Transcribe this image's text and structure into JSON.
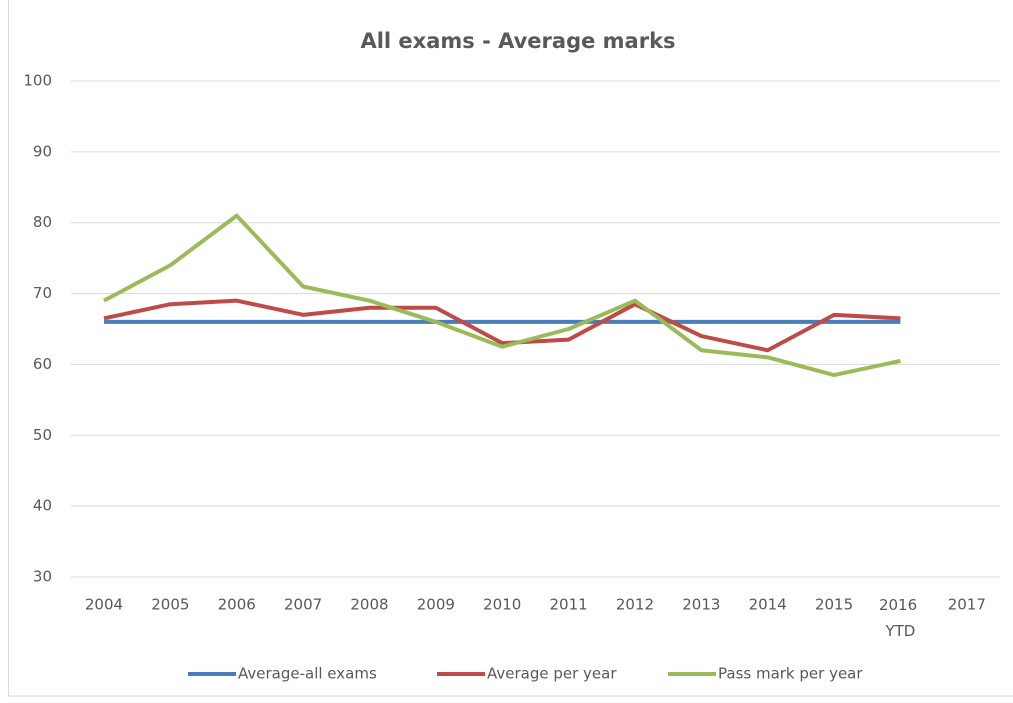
{
  "chart_data": {
    "type": "line",
    "title": "All exams - Average marks",
    "categories": [
      "2004",
      "2005",
      "2006",
      "2007",
      "2008",
      "2009",
      "2010",
      "2011",
      "2012",
      "2013",
      "2014",
      "2015",
      "2016 YTD",
      "2017"
    ],
    "series": [
      {
        "name": "Average-all exams",
        "color": "#4a7ebb",
        "values": [
          66,
          66,
          66,
          66,
          66,
          66,
          66,
          66,
          66,
          66,
          66,
          66,
          66,
          null
        ]
      },
      {
        "name": "Average per year",
        "color": "#be4b48",
        "values": [
          66.5,
          68.5,
          69,
          67,
          68,
          68,
          63,
          63.5,
          68.5,
          64,
          62,
          67,
          66.5,
          null
        ]
      },
      {
        "name": "Pass mark per year",
        "color": "#9bbb59",
        "values": [
          69,
          74,
          81,
          71,
          69,
          66,
          62.5,
          65,
          69,
          62,
          61,
          58.5,
          60.5,
          null
        ]
      }
    ],
    "ylim": [
      30,
      100
    ],
    "yticks": [
      30,
      40,
      50,
      60,
      70,
      80,
      90,
      100
    ],
    "grid": true,
    "legend": "bottom"
  }
}
